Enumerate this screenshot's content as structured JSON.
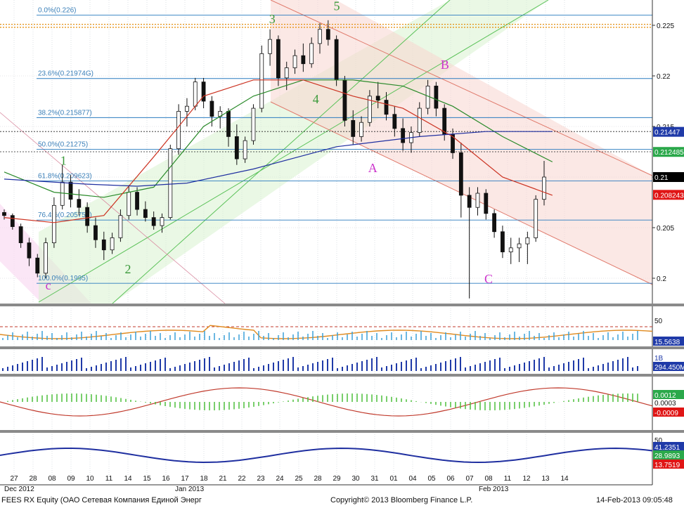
{
  "chart_data": {
    "type": "candlestick",
    "ticker": "FEES RX Equity (ОАО Сетевая Компания Единой Энерг",
    "x_day_labels": [
      "27",
      "28",
      "08",
      "09",
      "10",
      "11",
      "14",
      "15",
      "16",
      "17",
      "18",
      "21",
      "22",
      "23",
      "24",
      "25",
      "28",
      "29",
      "30",
      "31",
      "01",
      "04",
      "05",
      "06",
      "07",
      "08",
      "11",
      "12",
      "13",
      "14"
    ],
    "x_month_labels": [
      {
        "text": "Dec 2012",
        "day_index": 0
      },
      {
        "text": "Jan 2013",
        "day_index": 9
      },
      {
        "text": "Feb 2013",
        "day_index": 25
      }
    ],
    "price_axis": {
      "ylim": [
        0.1975,
        0.2275
      ],
      "ticks": [
        "0.225",
        "0.22",
        "0.215",
        "0.21",
        "0.205",
        "0.2"
      ],
      "tick_values": [
        0.225,
        0.22,
        0.215,
        0.21,
        0.205,
        0.2
      ]
    },
    "fibonacci_levels": [
      {
        "label": "0.0%(0.226)",
        "value": 0.226
      },
      {
        "label": "23.6%(0.21974G)",
        "value": 0.21974
      },
      {
        "label": "38.2%(0.215877)",
        "value": 0.215877
      },
      {
        "label": "50.0%(0.21275)",
        "value": 0.21275
      },
      {
        "label": "61.8%(0.209623)",
        "value": 0.209623
      },
      {
        "label": "76.4%(0.205753)",
        "value": 0.205753
      },
      {
        "label": "100.0%(0.1995)",
        "value": 0.1995
      }
    ],
    "horizontal_dotted_levels": [
      0.2248,
      0.2251,
      0.2145,
      0.2125
    ],
    "last_value_labels": [
      {
        "text": "0.21447",
        "value": 0.21447,
        "color": "#1f3aa8"
      },
      {
        "text": "0.212485",
        "value": 0.212485,
        "color": "#2aa84a"
      },
      {
        "text": "0.21",
        "value": 0.21,
        "color": "#000000"
      },
      {
        "text": "0.208243",
        "value": 0.208243,
        "color": "#e01515"
      }
    ],
    "wave_labels": [
      {
        "text": "1",
        "day": 2.6,
        "price": 0.2112,
        "color": "#3a9a3a"
      },
      {
        "text": "2",
        "day": 6.0,
        "price": 0.2005,
        "color": "#3a9a3a"
      },
      {
        "text": "3",
        "day": 13.6,
        "price": 0.2252,
        "color": "#3a9a3a"
      },
      {
        "text": "4",
        "day": 15.9,
        "price": 0.2173,
        "color": "#3a9a3a"
      },
      {
        "text": "5",
        "day": 17.0,
        "price": 0.2265,
        "color": "#3a9a3a"
      },
      {
        "text": "A",
        "day": 18.9,
        "price": 0.2105,
        "color": "#cc33cc"
      },
      {
        "text": "B",
        "day": 22.7,
        "price": 0.2207,
        "color": "#cc33cc"
      },
      {
        "text": "C",
        "day": 25.0,
        "price": 0.1995,
        "color": "#cc33cc"
      },
      {
        "text": "c",
        "day": 1.8,
        "price": 0.1989,
        "color": "#cc33cc"
      }
    ],
    "candles": [
      [
        0.2065,
        0.2068,
        0.2058,
        0.2062
      ],
      [
        0.2062,
        0.2064,
        0.2048,
        0.2051
      ],
      [
        0.2051,
        0.2054,
        0.203,
        0.2035
      ],
      [
        0.2035,
        0.204,
        0.2012,
        0.202
      ],
      [
        0.202,
        0.2024,
        0.2001,
        0.2005
      ],
      [
        0.2005,
        0.204,
        0.2,
        0.2035
      ],
      [
        0.2035,
        0.208,
        0.203,
        0.2072
      ],
      [
        0.2072,
        0.2112,
        0.2068,
        0.2095
      ],
      [
        0.2095,
        0.2102,
        0.207,
        0.2078
      ],
      [
        0.2078,
        0.2088,
        0.2062,
        0.207
      ],
      [
        0.207,
        0.2075,
        0.2045,
        0.2052
      ],
      [
        0.2052,
        0.206,
        0.203,
        0.2038
      ],
      [
        0.2038,
        0.2046,
        0.2018,
        0.2028
      ],
      [
        0.2028,
        0.2045,
        0.2024,
        0.204
      ],
      [
        0.204,
        0.2068,
        0.2036,
        0.2062
      ],
      [
        0.2062,
        0.2092,
        0.2058,
        0.2085
      ],
      [
        0.2085,
        0.209,
        0.2062,
        0.2068
      ],
      [
        0.2068,
        0.2076,
        0.2056,
        0.206
      ],
      [
        0.206,
        0.2066,
        0.2048,
        0.2052
      ],
      [
        0.2052,
        0.2064,
        0.2045,
        0.206
      ],
      [
        0.206,
        0.2132,
        0.2058,
        0.2128
      ],
      [
        0.2128,
        0.2172,
        0.2122,
        0.2165
      ],
      [
        0.2165,
        0.2178,
        0.215,
        0.217
      ],
      [
        0.217,
        0.2198,
        0.2166,
        0.2194
      ],
      [
        0.2194,
        0.2198,
        0.2168,
        0.2175
      ],
      [
        0.2175,
        0.218,
        0.215,
        0.216
      ],
      [
        0.216,
        0.217,
        0.2148,
        0.2165
      ],
      [
        0.2165,
        0.2168,
        0.213,
        0.214
      ],
      [
        0.214,
        0.2152,
        0.2112,
        0.2118
      ],
      [
        0.2118,
        0.214,
        0.2114,
        0.2136
      ],
      [
        0.2136,
        0.2172,
        0.2132,
        0.2168
      ],
      [
        0.2168,
        0.223,
        0.2164,
        0.2222
      ],
      [
        0.2222,
        0.2246,
        0.221,
        0.2236
      ],
      [
        0.2236,
        0.224,
        0.219,
        0.2198
      ],
      [
        0.2198,
        0.2214,
        0.2186,
        0.2208
      ],
      [
        0.2208,
        0.2226,
        0.2202,
        0.222
      ],
      [
        0.222,
        0.2232,
        0.2204,
        0.2212
      ],
      [
        0.2212,
        0.2238,
        0.2208,
        0.2232
      ],
      [
        0.2232,
        0.2252,
        0.2222,
        0.2246
      ],
      [
        0.2246,
        0.2255,
        0.223,
        0.2236
      ],
      [
        0.2236,
        0.224,
        0.219,
        0.2196
      ],
      [
        0.2196,
        0.22,
        0.215,
        0.2156
      ],
      [
        0.2156,
        0.2166,
        0.2132,
        0.214
      ],
      [
        0.214,
        0.216,
        0.2135,
        0.2154
      ],
      [
        0.2154,
        0.2186,
        0.215,
        0.218
      ],
      [
        0.218,
        0.2194,
        0.2168,
        0.2176
      ],
      [
        0.2176,
        0.2184,
        0.2156,
        0.2162
      ],
      [
        0.2162,
        0.217,
        0.214,
        0.2148
      ],
      [
        0.2148,
        0.2158,
        0.2126,
        0.2134
      ],
      [
        0.2134,
        0.215,
        0.2124,
        0.2144
      ],
      [
        0.2144,
        0.2174,
        0.214,
        0.2168
      ],
      [
        0.2168,
        0.2196,
        0.2162,
        0.219
      ],
      [
        0.219,
        0.2194,
        0.216,
        0.2168
      ],
      [
        0.2168,
        0.2172,
        0.2136,
        0.2142
      ],
      [
        0.2142,
        0.2148,
        0.2118,
        0.2124
      ],
      [
        0.2124,
        0.2134,
        0.206,
        0.2082
      ],
      [
        0.2082,
        0.209,
        0.198,
        0.207
      ],
      [
        0.207,
        0.209,
        0.2062,
        0.2084
      ],
      [
        0.2084,
        0.2088,
        0.2058,
        0.2064
      ],
      [
        0.2064,
        0.2068,
        0.204,
        0.2046
      ],
      [
        0.2046,
        0.2052,
        0.202,
        0.2026
      ],
      [
        0.2026,
        0.204,
        0.2014,
        0.203
      ],
      [
        0.203,
        0.204,
        0.2016,
        0.2034
      ],
      [
        0.2034,
        0.2046,
        0.2014,
        0.204
      ],
      [
        0.204,
        0.2082,
        0.2036,
        0.2078
      ],
      [
        0.2078,
        0.2116,
        0.2072,
        0.21
      ]
    ],
    "moving_averages": [
      {
        "color": "#2a8a2a",
        "points": [
          [
            0,
            0.2105
          ],
          [
            6,
            0.2085
          ],
          [
            12,
            0.208
          ],
          [
            18,
            0.209
          ],
          [
            24,
            0.215
          ],
          [
            30,
            0.218
          ],
          [
            36,
            0.2196
          ],
          [
            42,
            0.2196
          ],
          [
            48,
            0.219
          ],
          [
            54,
            0.217
          ],
          [
            60,
            0.214
          ],
          [
            66,
            0.2115
          ]
        ]
      },
      {
        "color": "#cc3322",
        "points": [
          [
            0,
            0.206
          ],
          [
            6,
            0.2055
          ],
          [
            12,
            0.2062
          ],
          [
            18,
            0.212
          ],
          [
            24,
            0.218
          ],
          [
            30,
            0.2196
          ],
          [
            36,
            0.2196
          ],
          [
            42,
            0.218
          ],
          [
            48,
            0.2168
          ],
          [
            54,
            0.214
          ],
          [
            60,
            0.21
          ],
          [
            66,
            0.2082
          ]
        ]
      },
      {
        "color": "#1f2fa0",
        "points": [
          [
            0,
            0.2098
          ],
          [
            10,
            0.2093
          ],
          [
            16,
            0.2091
          ],
          [
            22,
            0.2094
          ],
          [
            30,
            0.2108
          ],
          [
            40,
            0.213
          ],
          [
            50,
            0.214
          ],
          [
            58,
            0.2145
          ],
          [
            66,
            0.2145
          ]
        ]
      }
    ],
    "panel_labels": {
      "rsi_top": "50",
      "rsi_value": "15.5638",
      "volume_top": "1B",
      "volume_value": "294.450M",
      "macd_a": "0.0012",
      "macd_b": "0.0003",
      "macd_c": "-0.0009",
      "dmi_top": "50",
      "dmi_a": "41.2351",
      "dmi_b": "28.9893",
      "dmi_c": "13.7519"
    }
  },
  "footer": {
    "left": "FEES RX Equity (ОАО Сетевая Компания Единой Энерг",
    "center": "Copyright© 2013 Bloomberg Finance L.P.",
    "right": "14-Feb-2013 09:05:48"
  }
}
